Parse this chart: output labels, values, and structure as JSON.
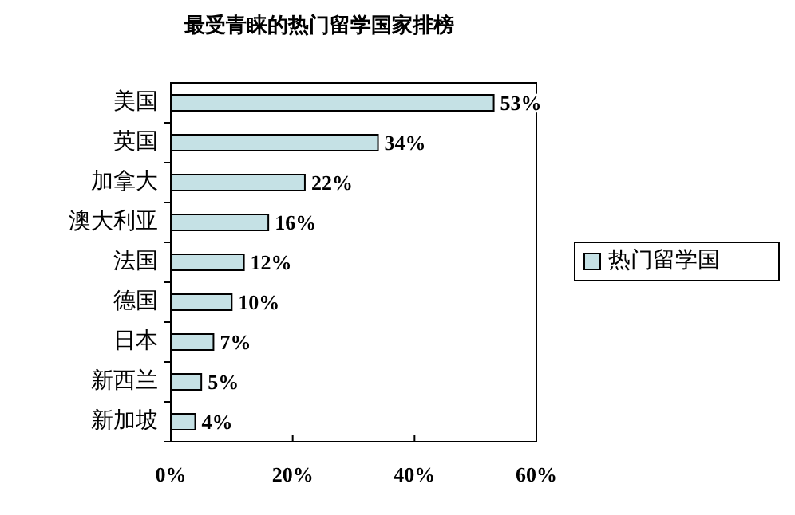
{
  "chart_data": {
    "type": "bar",
    "orientation": "horizontal",
    "title": "最受青睐的热门留学国家排榜",
    "categories": [
      "美国",
      "英国",
      "加拿大",
      "澳大利亚",
      "法国",
      "德国",
      "日本",
      "新西兰",
      "新加坡"
    ],
    "series": [
      {
        "name": "热门留学国",
        "color": "#c5e1e5",
        "values": [
          53,
          34,
          22,
          16,
          12,
          10,
          7,
          5,
          4
        ],
        "value_labels": [
          "53%",
          "34%",
          "22%",
          "16%",
          "12%",
          "10%",
          "7%",
          "5%",
          "4%"
        ]
      }
    ],
    "xlim": [
      0,
      60
    ],
    "xticks": [
      {
        "value": 0,
        "label": "0%"
      },
      {
        "value": 20,
        "label": "20%"
      },
      {
        "value": 40,
        "label": "40%"
      },
      {
        "value": 60,
        "label": "60%"
      }
    ],
    "legend": "right",
    "grid": false
  }
}
